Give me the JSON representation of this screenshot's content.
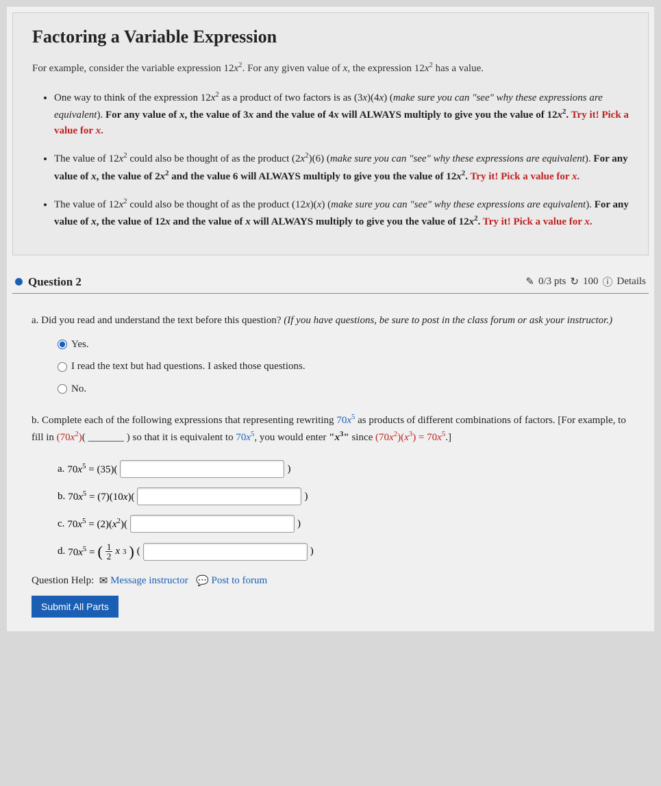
{
  "lesson": {
    "title": "Factoring a Variable Expression",
    "intro_pre": "For example, consider the variable expression ",
    "intro_mid": ". For any given value of ",
    "intro_post": " has a value.",
    "expr12x2": "12x²",
    "varx": "x",
    "bullets": [
      {
        "p1": "One way to think of the expression ",
        "p2": " as a product of two factors is as ",
        "prod": "(3x)(4x)",
        "p3": " (",
        "it": "make sure you can \"see\" why these expressions are equivalent",
        "p4": "). ",
        "b1": "For any value of ",
        "b2": ", the value of ",
        "v1": "3x",
        "b3": " and the value of ",
        "v2": "4x",
        "b4": " will ALWAYS multiply to give you the value of ",
        "try": "Try it! Pick a value for ",
        "dot": "."
      },
      {
        "p1": "The value of ",
        "p2": " could also be thought of as the product ",
        "prod": "(2x²)(6)",
        "p3": " (",
        "it": "make sure you can \"see\" why these expressions are equivalent",
        "p4": "). ",
        "b1": "For any value of ",
        "b2": ", the value of ",
        "v1": "2x²",
        "b3": " and the value ",
        "v2": "6",
        "b4": " will ALWAYS multiply to give you the value of ",
        "try": "Try it! Pick a value for ",
        "dot": "."
      },
      {
        "p1": "The value of ",
        "p2": " could also be thought of as the product ",
        "prod": "(12x)(x)",
        "p3": " (",
        "it": "make sure you can \"see\" why these expressions are equivalent",
        "p4": "). ",
        "b1": "For any value of ",
        "b2": ", the value of ",
        "v1": "12x",
        "b3": " and the value of ",
        "v2": "x",
        "b4": " will ALWAYS multiply to give you the value of ",
        "try": "Try it! Pick a value for ",
        "dot": "."
      }
    ]
  },
  "question": {
    "label": "Question 2",
    "points": "0/3 pts",
    "attempts": "100",
    "details": "Details",
    "partA": {
      "letter": "a. ",
      "text": "Did you read and understand the text before this question? ",
      "italic": "(If you have questions, be sure to post in the class forum or ask your instructor.)",
      "options": [
        "Yes.",
        "I read the text but had questions. I asked those questions.",
        "No."
      ]
    },
    "partB": {
      "letter": "b. ",
      "t1": "Complete each of the following expressions that representing rewriting ",
      "expr70x5": "70x⁵",
      "t2": " as products of different combinations of factors. [For example, to fill in ",
      "ex1": "(70x²)",
      "blank": "( _______ )",
      "t3": " so that it is equivalent to ",
      "t4": ", you would enter ",
      "quote": "\"x³\"",
      "t5": " since ",
      "ex2": "(70x²)(x³) = 70x⁵",
      "t6": ".]",
      "subs": [
        {
          "l": "a. ",
          "lhs": "70x⁵ = ",
          "rhs": "(35)("
        },
        {
          "l": "b. ",
          "lhs": "70x⁵ = ",
          "rhs": "(7)(10x)("
        },
        {
          "l": "c. ",
          "lhs": "70x⁵ = ",
          "rhs": "(2)(x²)("
        },
        {
          "l": "d. ",
          "lhs": "70x⁵ = "
        }
      ]
    },
    "help": {
      "label": "Question Help:",
      "msg": "Message instructor",
      "post": "Post to forum"
    },
    "submit": "Submit All Parts"
  },
  "icons": {
    "check": "✎",
    "retry": "↻",
    "info": "ⓘ",
    "envelope": "✉",
    "comment": "💬"
  }
}
